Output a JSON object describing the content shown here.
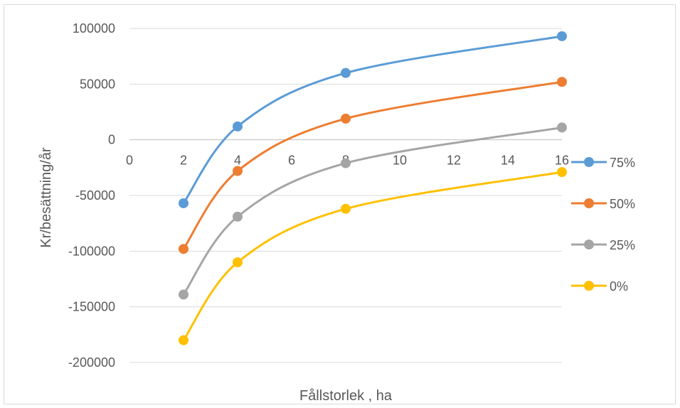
{
  "chart_data": {
    "type": "line",
    "title": "",
    "xlabel": "Fållstorlek , ha",
    "ylabel": "Kr/besättning/år",
    "x_ticks": [
      0,
      2,
      4,
      6,
      8,
      10,
      12,
      14,
      16
    ],
    "y_ticks": [
      100000,
      50000,
      0,
      -50000,
      -100000,
      -150000,
      -200000
    ],
    "xlim": [
      0,
      16
    ],
    "ylim": [
      -200000,
      100000
    ],
    "grid": "horizontal",
    "legend_position": "right",
    "x": [
      2,
      4,
      8,
      16
    ],
    "series": [
      {
        "name": "75%",
        "color": "#5b9bd5",
        "values": [
          -57000,
          12000,
          60000,
          93000
        ]
      },
      {
        "name": "50%",
        "color": "#ed7d31",
        "values": [
          -98000,
          -28000,
          19000,
          52000
        ]
      },
      {
        "name": "25%",
        "color": "#a5a5a5",
        "values": [
          -139000,
          -69000,
          -21000,
          11000
        ]
      },
      {
        "name": "0%",
        "color": "#ffc000",
        "values": [
          -180000,
          -110000,
          -62000,
          -29000
        ]
      }
    ]
  }
}
